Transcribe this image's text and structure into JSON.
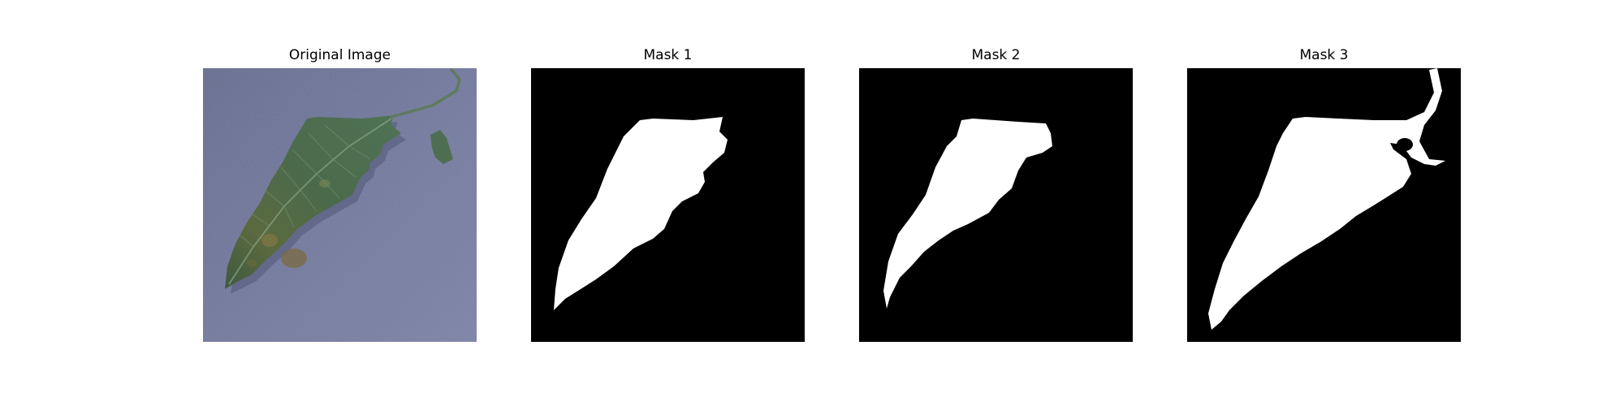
{
  "figure": {
    "panels": [
      {
        "title": "Original Image",
        "content": "leaf-photo"
      },
      {
        "title": "Mask 1",
        "content": "binary-mask"
      },
      {
        "title": "Mask 2",
        "content": "binary-mask"
      },
      {
        "title": "Mask 3",
        "content": "binary-mask"
      }
    ]
  },
  "colors": {
    "background": "#ffffff",
    "photo_background": "#6e7596",
    "leaf_green": "#4a6b4a",
    "mask_foreground": "#ffffff",
    "mask_background": "#000000"
  }
}
